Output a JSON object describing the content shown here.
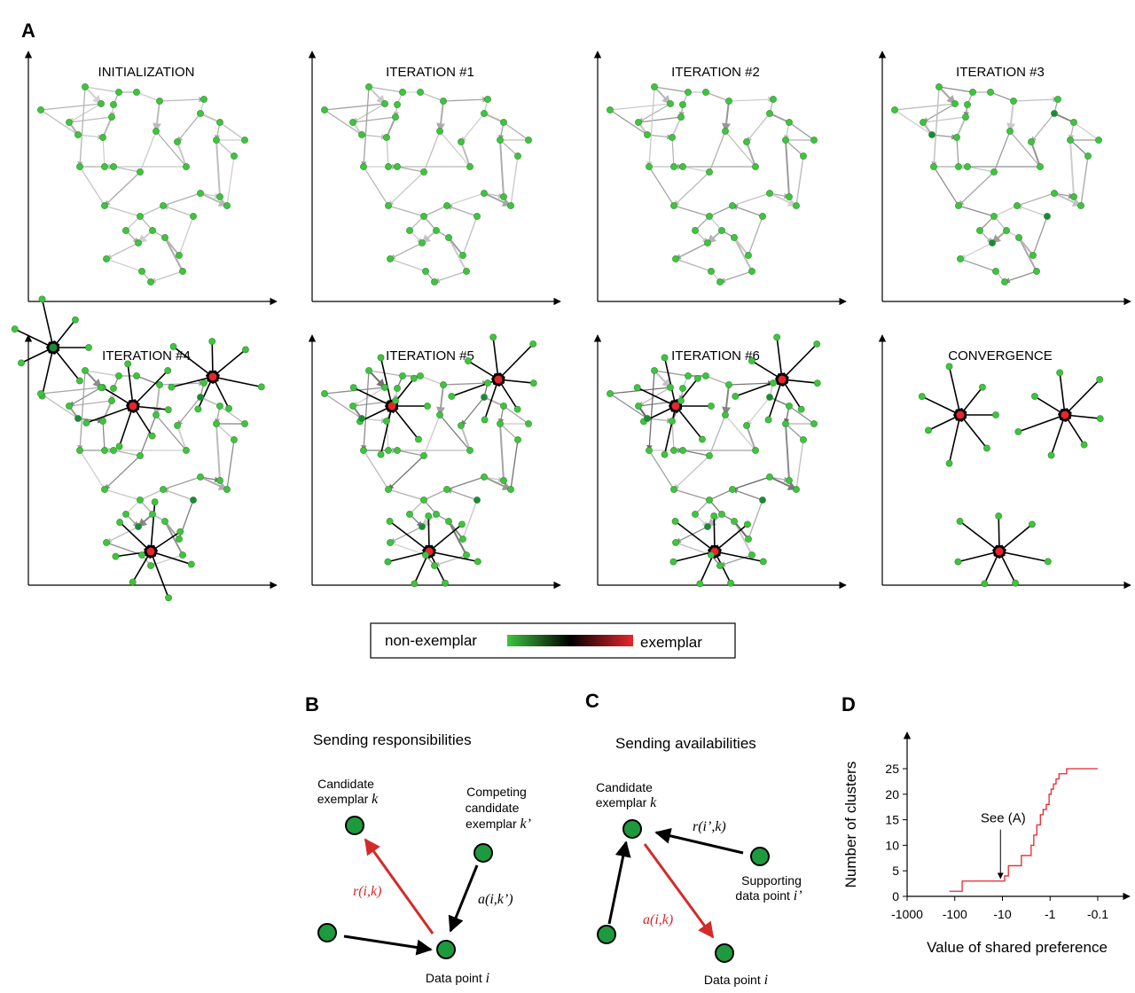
{
  "panels": {
    "A": {
      "letter": "A",
      "subplots": [
        {
          "title": "INITIALIZATION"
        },
        {
          "title": "ITERATION #1"
        },
        {
          "title": "ITERATION #2"
        },
        {
          "title": "ITERATION #3"
        },
        {
          "title": "ITERATION #4"
        },
        {
          "title": "ITERATION #5"
        },
        {
          "title": "ITERATION #6"
        },
        {
          "title": "CONVERGENCE"
        }
      ],
      "legend": {
        "left_label": "non-exemplar",
        "right_label": "exemplar",
        "gradient_colors": [
          "#3ec43e",
          "#000000",
          "#e8252d"
        ]
      }
    },
    "B": {
      "letter": "B",
      "title": "Sending responsibilities",
      "candidate": {
        "line1": "Candidate",
        "line2": "exemplar ",
        "var": "k"
      },
      "competing": {
        "line1": "Competing",
        "line2": "candidate",
        "line3": "exemplar ",
        "var": "k’"
      },
      "arrow_r": "r(i,k)",
      "arrow_a": "a(i,k’)",
      "datapoint": {
        "text": "Data point ",
        "var": "i"
      }
    },
    "C": {
      "letter": "C",
      "title": "Sending availabilities",
      "candidate": {
        "line1": "Candidate",
        "line2": "exemplar ",
        "var": "k"
      },
      "arrow_r": "r(i’,k)",
      "arrow_a": "a(i,k)",
      "supporting": {
        "line1": "Supporting",
        "line2": "data point ",
        "var": "i’"
      },
      "datapoint": {
        "text": "Data point ",
        "var": "i"
      }
    },
    "D": {
      "letter": "D",
      "annotation": "See (A)"
    }
  },
  "colors": {
    "node_green": "#3ec43e",
    "node_dark_green": "#1b8a3a",
    "exemplar_red": "#e8252d",
    "message_red": "#d42a2a"
  },
  "chart_data": {
    "type": "line",
    "xlabel": "Value of shared preference",
    "ylabel": "Number of clusters",
    "xscale": "log",
    "x_ticks": [
      -1000,
      -100,
      -10,
      -1,
      -0.1
    ],
    "x_tick_labels": [
      "-1000",
      "-100",
      "-10",
      "-1",
      "-0.1"
    ],
    "y_ticks": [
      0,
      5,
      10,
      15,
      20,
      25
    ],
    "ylim": [
      0,
      28
    ],
    "series": [
      {
        "color": "#e8252d",
        "step": true,
        "x": [
          -130,
          -80,
          -70,
          -13,
          -9,
          -7.5,
          -6,
          -4,
          -3.2,
          -2.5,
          -2.2,
          -1.9,
          -1.6,
          -1.4,
          -1.2,
          -1.05,
          -0.95,
          -0.85,
          -0.75,
          -0.65,
          -0.55,
          -0.45,
          -0.38,
          -0.3,
          -0.1
        ],
        "y": [
          1,
          1,
          3,
          3,
          4,
          6,
          6,
          8,
          8,
          10,
          12,
          14,
          16,
          17,
          18,
          20,
          21,
          22,
          23,
          24,
          24,
          25,
          25,
          25,
          25
        ]
      }
    ],
    "annotation": {
      "text": "See (A)",
      "x": -11,
      "y": 3
    }
  }
}
